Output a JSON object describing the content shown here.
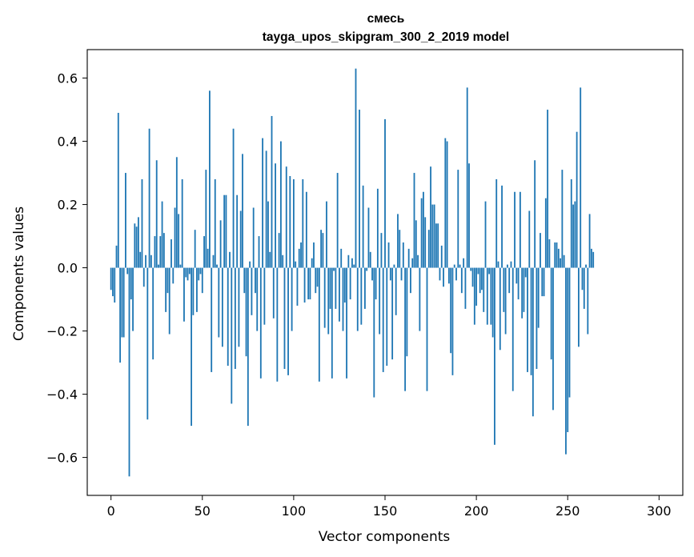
{
  "chart_data": {
    "type": "bar",
    "title_line1": "смесь",
    "title_line2": "tayga_upos_skipgram_300_2_2019 model",
    "xlabel": "Vector components",
    "ylabel": "Components values",
    "xlim": [
      -13,
      313
    ],
    "ylim": [
      -0.72,
      0.69
    ],
    "xticks": [
      0,
      50,
      100,
      150,
      200,
      250,
      300
    ],
    "xtick_labels": [
      "0",
      "50",
      "100",
      "150",
      "200",
      "250",
      "300"
    ],
    "yticks": [
      -0.6,
      -0.4,
      -0.2,
      0.0,
      0.2,
      0.4,
      0.6
    ],
    "ytick_labels": [
      "−0.6",
      "−0.4",
      "−0.2",
      "0.0",
      "0.2",
      "0.4",
      "0.6"
    ],
    "bar_color": "#1f77b4",
    "grid": false,
    "values": [
      -0.07,
      -0.09,
      -0.11,
      0.07,
      0.49,
      -0.3,
      -0.22,
      -0.22,
      0.3,
      -0.02,
      -0.66,
      -0.1,
      -0.2,
      0.14,
      0.13,
      0.16,
      0.05,
      0.28,
      -0.06,
      0.04,
      -0.48,
      0.44,
      0.04,
      -0.29,
      0.1,
      0.34,
      0.01,
      0.1,
      0.21,
      0.11,
      -0.14,
      -0.08,
      -0.21,
      0.09,
      -0.05,
      0.19,
      0.35,
      0.17,
      0.01,
      0.28,
      -0.17,
      -0.03,
      -0.04,
      -0.02,
      -0.5,
      -0.15,
      0.12,
      -0.14,
      -0.04,
      -0.02,
      -0.08,
      0.1,
      0.31,
      0.06,
      0.56,
      -0.33,
      0.04,
      0.28,
      0.01,
      -0.22,
      0.15,
      -0.25,
      0.23,
      0.23,
      -0.31,
      0.05,
      -0.43,
      0.44,
      -0.32,
      0.23,
      -0.25,
      0.18,
      0.36,
      -0.08,
      -0.28,
      -0.5,
      0.02,
      -0.15,
      0.19,
      -0.08,
      -0.2,
      0.1,
      -0.35,
      0.41,
      -0.18,
      0.37,
      0.21,
      0.05,
      0.48,
      -0.16,
      0.33,
      -0.36,
      0.11,
      0.4,
      0.04,
      -0.32,
      0.32,
      -0.34,
      0.29,
      -0.2,
      0.28,
      0.02,
      -0.12,
      0.06,
      0.08,
      0.28,
      -0.11,
      0.24,
      -0.1,
      -0.1,
      0.03,
      0.08,
      -0.08,
      -0.06,
      -0.36,
      0.12,
      0.11,
      -0.19,
      0.21,
      -0.21,
      -0.13,
      -0.35,
      -0.01,
      -0.13,
      0.3,
      -0.17,
      0.06,
      -0.2,
      -0.11,
      -0.35,
      0.04,
      -0.1,
      0.03,
      0.01,
      0.63,
      -0.2,
      0.5,
      -0.18,
      0.26,
      -0.13,
      -0.01,
      0.19,
      0.05,
      -0.04,
      -0.41,
      -0.1,
      0.25,
      -0.21,
      0.11,
      -0.33,
      0.47,
      -0.31,
      0.08,
      -0.04,
      -0.29,
      0.01,
      -0.15,
      0.17,
      0.12,
      -0.04,
      0.08,
      -0.39,
      -0.28,
      0.06,
      -0.08,
      0.03,
      0.3,
      0.15,
      0.04,
      -0.2,
      0.22,
      0.24,
      0.16,
      -0.39,
      0.12,
      0.32,
      0.2,
      0.2,
      0.14,
      0.14,
      -0.04,
      0.07,
      -0.06,
      0.41,
      0.4,
      -0.05,
      -0.27,
      -0.34,
      0.01,
      -0.04,
      0.31,
      0.01,
      -0.08,
      0.03,
      -0.13,
      0.57,
      0.33,
      -0.01,
      -0.06,
      -0.18,
      -0.12,
      -0.02,
      -0.08,
      -0.07,
      -0.14,
      0.21,
      -0.18,
      -0.02,
      -0.18,
      -0.22,
      -0.56,
      0.28,
      0.02,
      -0.26,
      0.26,
      -0.14,
      -0.21,
      0.01,
      -0.08,
      0.02,
      -0.39,
      0.24,
      -0.05,
      -0.1,
      0.24,
      -0.16,
      -0.14,
      -0.03,
      -0.33,
      0.18,
      -0.34,
      -0.47,
      0.34,
      -0.32,
      -0.19,
      0.11,
      -0.09,
      -0.09,
      0.22,
      0.5,
      0.09,
      -0.29,
      -0.45,
      0.08,
      0.08,
      0.06,
      0.03,
      0.31,
      0.04,
      -0.59,
      -0.52,
      -0.41,
      0.28,
      0.2,
      0.21,
      0.43,
      -0.25,
      0.57,
      -0.07,
      -0.13,
      0.01,
      -0.21,
      0.17,
      0.06,
      0.05
    ]
  }
}
